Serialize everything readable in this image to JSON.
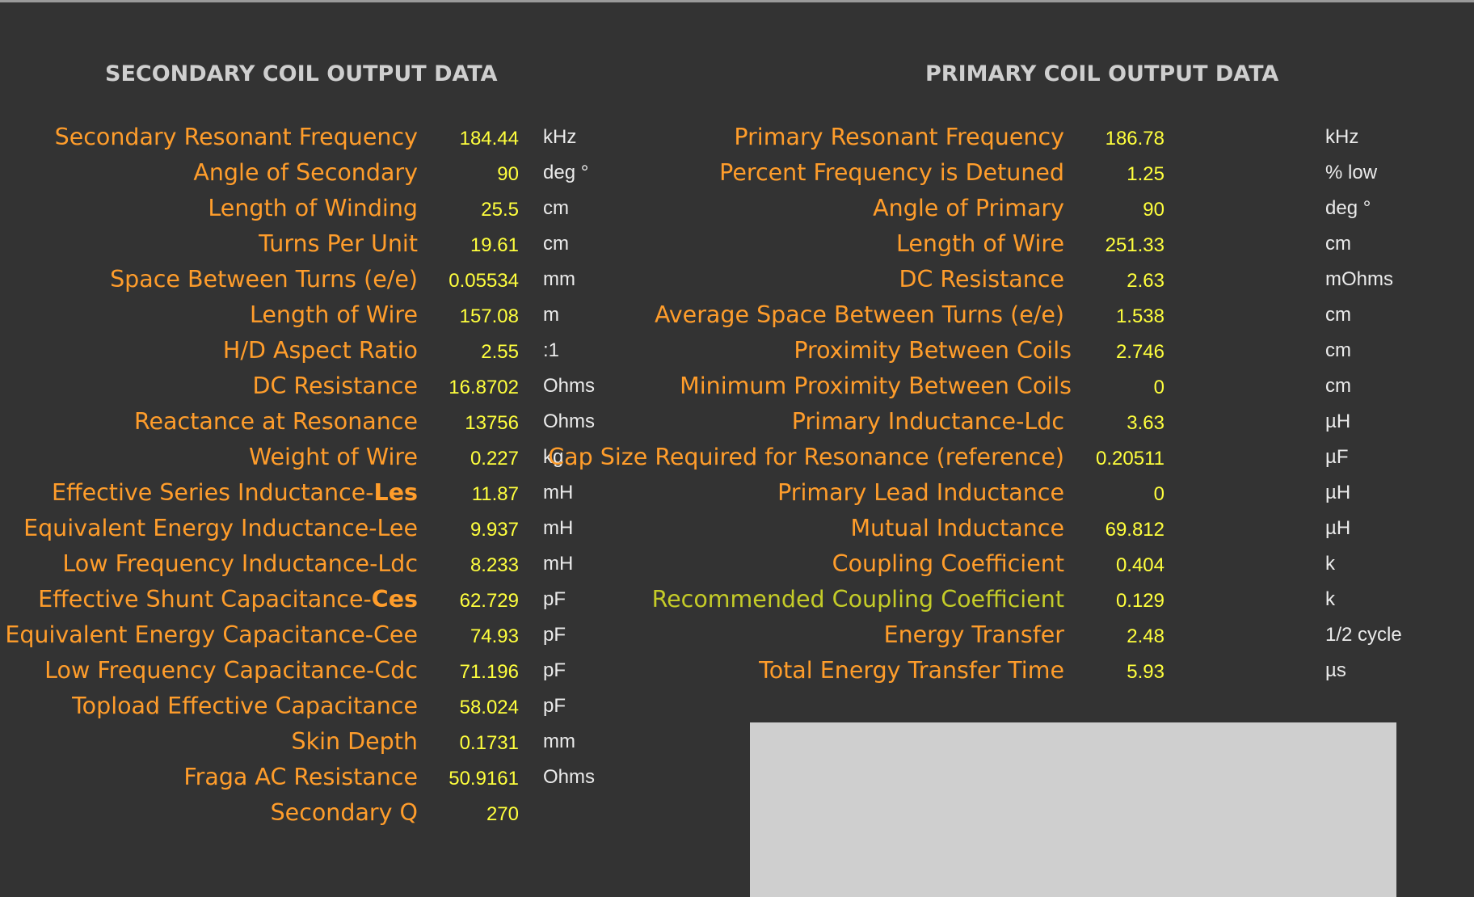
{
  "secondary": {
    "title": "SECONDARY COIL OUTPUT DATA",
    "rows": [
      {
        "label": "Secondary Resonant Frequency",
        "value": "184.44",
        "unit": "kHz"
      },
      {
        "label": "Angle of Secondary",
        "value": "90",
        "unit": "deg °"
      },
      {
        "label": "Length of Winding",
        "value": "25.5",
        "unit": "cm"
      },
      {
        "label": "Turns Per Unit",
        "value": "19.61",
        "unit": "cm"
      },
      {
        "label": "Space Between Turns (e/e)",
        "value": "0.05534",
        "unit": "mm"
      },
      {
        "label": "Length of Wire",
        "value": "157.08",
        "unit": "m"
      },
      {
        "label": "H/D Aspect Ratio",
        "value": "2.55",
        "unit": ":1"
      },
      {
        "label": "DC Resistance",
        "value": "16.8702",
        "unit": "Ohms"
      },
      {
        "label": "Reactance at Resonance",
        "value": "13756",
        "unit": "Ohms"
      },
      {
        "label": "Weight of Wire",
        "value": "0.227",
        "unit": "kg"
      },
      {
        "label": "Effective Series Inductance-",
        "label_bold": "Les",
        "value": "11.87",
        "unit": "mH"
      },
      {
        "label": "Equivalent Energy Inductance-Lee",
        "value": "9.937",
        "unit": "mH"
      },
      {
        "label": "Low Frequency Inductance-Ldc",
        "value": "8.233",
        "unit": "mH"
      },
      {
        "label": "Effective Shunt Capacitance-",
        "label_bold": "Ces",
        "value": "62.729",
        "unit": "pF"
      },
      {
        "label": "Equivalent Energy Capacitance-Cee",
        "value": "74.93",
        "unit": "pF"
      },
      {
        "label": "Low Frequency Capacitance-Cdc",
        "value": "71.196",
        "unit": "pF"
      },
      {
        "label": "Topload Effective Capacitance",
        "value": "58.024",
        "unit": "pF"
      },
      {
        "label": "Skin Depth",
        "value": "0.1731",
        "unit": "mm"
      },
      {
        "label": "Fraga AC Resistance",
        "value": "50.9161",
        "unit": "Ohms"
      },
      {
        "label": "Secondary Q",
        "value": "270",
        "unit": ""
      }
    ]
  },
  "primary": {
    "title": "PRIMARY COIL OUTPUT DATA",
    "rows": [
      {
        "label": "Primary Resonant Frequency",
        "value": "186.78",
        "unit": "kHz"
      },
      {
        "label": "Percent Frequency is Detuned",
        "value": "1.25",
        "unit": "% low"
      },
      {
        "label": "Angle of Primary",
        "value": "90",
        "unit": "deg °"
      },
      {
        "label": "Length of Wire",
        "value": "251.33",
        "unit": "cm"
      },
      {
        "label": "DC Resistance",
        "value": "2.63",
        "unit": "mOhms"
      },
      {
        "label": "Average Space Between Turns (e/e)",
        "value": "1.538",
        "unit": "cm"
      },
      {
        "label": "Proximity Between Coils",
        "value": "2.746",
        "unit": "cm"
      },
      {
        "label": "Minimum Proximity Between Coils",
        "value": "0",
        "unit": "cm"
      },
      {
        "label": "Primary Inductance-Ldc",
        "value": "3.63",
        "unit": "µH"
      },
      {
        "label": "Cap Size Required for Resonance (reference)",
        "value": "0.20511",
        "unit": "µF"
      },
      {
        "label": "Primary Lead Inductance",
        "value": "0",
        "unit": "µH"
      },
      {
        "label": "Mutual Inductance",
        "value": "69.812",
        "unit": "µH"
      },
      {
        "label": "Coupling Coefficient",
        "value": "0.404",
        "unit": "k"
      },
      {
        "label": "Recommended Coupling Coefficient",
        "value": "0.129",
        "unit": "k"
      },
      {
        "label": "Energy Transfer",
        "value": "2.48",
        "unit": "1/2 cycle"
      },
      {
        "label": "Total Energy Transfer Time",
        "value": "5.93",
        "unit": "µs"
      }
    ]
  },
  "colors": {
    "background": "#333333",
    "title": "#cfcfcf",
    "label": "#ff9d2b",
    "label_highlight": "#c5cc28",
    "value": "#ffff3d",
    "unit": "#ebebeb",
    "panel": "#cfcfcf"
  }
}
